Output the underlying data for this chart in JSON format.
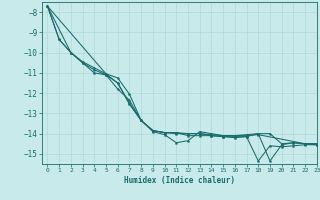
{
  "xlabel": "Humidex (Indice chaleur)",
  "bg_color": "#c8eaea",
  "line_color": "#1a6b6b",
  "grid_color": "#b0d8d8",
  "xlim": [
    -0.5,
    23
  ],
  "ylim": [
    -15.5,
    -7.5
  ],
  "yticks": [
    -8,
    -9,
    -10,
    -11,
    -12,
    -13,
    -14,
    -15
  ],
  "xticks": [
    0,
    1,
    2,
    3,
    4,
    5,
    6,
    7,
    8,
    9,
    10,
    11,
    12,
    13,
    14,
    15,
    16,
    17,
    18,
    19,
    20,
    21,
    22,
    23
  ],
  "series": [
    [
      0,
      -7.7
    ],
    [
      1,
      -9.35
    ],
    [
      2,
      -10.0
    ],
    [
      3,
      -10.45
    ],
    [
      4,
      -10.75
    ],
    [
      5,
      -11.05
    ],
    [
      6,
      -11.25
    ],
    [
      7,
      -12.05
    ],
    [
      8,
      -13.35
    ],
    [
      9,
      -13.9
    ],
    [
      10,
      -14.05
    ],
    [
      11,
      -14.45
    ],
    [
      12,
      -14.35
    ],
    [
      13,
      -13.9
    ],
    [
      14,
      -14.0
    ],
    [
      15,
      -14.1
    ],
    [
      16,
      -14.1
    ],
    [
      17,
      -14.05
    ],
    [
      18,
      -14.0
    ],
    [
      19,
      -15.35
    ],
    [
      20,
      -14.55
    ],
    [
      21,
      -14.45
    ],
    [
      22,
      -14.5
    ],
    [
      23,
      -14.55
    ]
  ],
  "series2": [
    [
      0,
      -7.7
    ],
    [
      1,
      -9.35
    ],
    [
      2,
      -10.0
    ],
    [
      3,
      -10.5
    ],
    [
      4,
      -10.85
    ],
    [
      5,
      -11.1
    ],
    [
      6,
      -11.5
    ],
    [
      7,
      -12.55
    ],
    [
      8,
      -13.35
    ],
    [
      9,
      -13.85
    ],
    [
      10,
      -13.95
    ],
    [
      11,
      -13.95
    ],
    [
      12,
      -14.1
    ],
    [
      13,
      -14.1
    ],
    [
      14,
      -14.1
    ],
    [
      15,
      -14.15
    ],
    [
      16,
      -14.2
    ],
    [
      17,
      -14.15
    ],
    [
      18,
      -15.35
    ],
    [
      19,
      -14.6
    ],
    [
      20,
      -14.65
    ],
    [
      21,
      -14.6
    ],
    [
      22,
      -14.55
    ],
    [
      23,
      -14.55
    ]
  ],
  "series3": [
    [
      0,
      -7.7
    ],
    [
      2,
      -10.0
    ],
    [
      3,
      -10.5
    ],
    [
      4,
      -11.0
    ],
    [
      5,
      -11.1
    ],
    [
      6,
      -11.8
    ],
    [
      7,
      -12.35
    ],
    [
      8,
      -13.35
    ],
    [
      9,
      -13.85
    ],
    [
      10,
      -13.95
    ],
    [
      11,
      -14.0
    ],
    [
      12,
      -14.0
    ],
    [
      13,
      -14.0
    ],
    [
      14,
      -14.1
    ],
    [
      15,
      -14.15
    ],
    [
      16,
      -14.15
    ],
    [
      17,
      -14.15
    ],
    [
      18,
      -14.0
    ],
    [
      19,
      -14.0
    ],
    [
      20,
      -14.5
    ],
    [
      21,
      -14.45
    ],
    [
      22,
      -14.5
    ],
    [
      23,
      -14.5
    ]
  ],
  "series4": [
    [
      0,
      -7.7
    ],
    [
      5,
      -11.05
    ],
    [
      6,
      -11.5
    ],
    [
      7,
      -12.5
    ],
    [
      8,
      -13.35
    ],
    [
      9,
      -13.85
    ],
    [
      10,
      -13.95
    ],
    [
      11,
      -13.95
    ],
    [
      12,
      -14.0
    ],
    [
      13,
      -14.0
    ],
    [
      14,
      -14.05
    ],
    [
      15,
      -14.1
    ],
    [
      16,
      -14.1
    ],
    [
      17,
      -14.1
    ],
    [
      18,
      -14.05
    ],
    [
      22,
      -14.5
    ],
    [
      23,
      -14.5
    ]
  ]
}
